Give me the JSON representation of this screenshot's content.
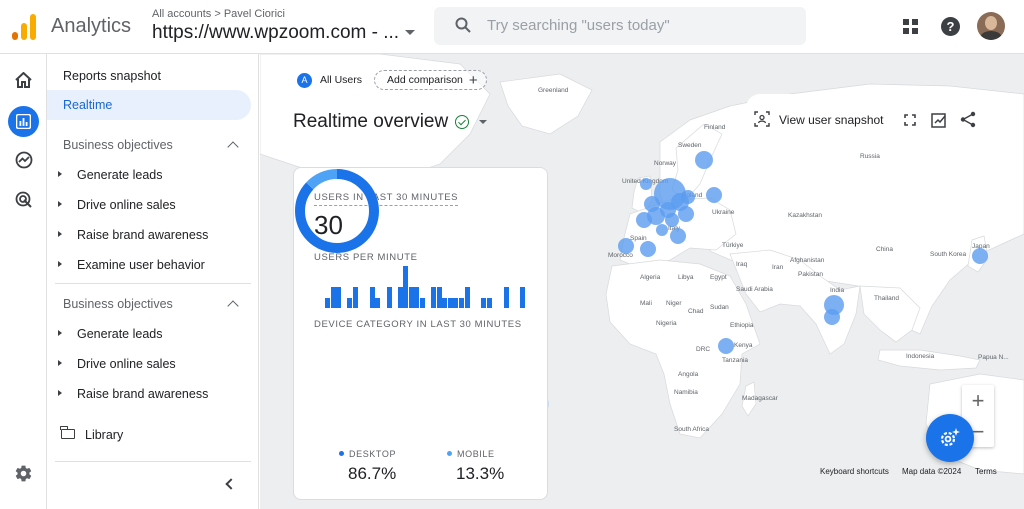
{
  "header": {
    "app_title": "Analytics",
    "breadcrumb": "All accounts > Pavel Ciorici",
    "account_name": "https://www.wpzoom.com - ...",
    "search_placeholder": "Try searching \"users today\""
  },
  "rail": {
    "items": [
      "home-icon",
      "reports-icon",
      "explore-icon",
      "advertising-icon",
      "settings-icon"
    ]
  },
  "nav": {
    "reports_snapshot": "Reports snapshot",
    "realtime": "Realtime",
    "section1": {
      "title": "Business objectives",
      "items": [
        "Generate leads",
        "Drive online sales",
        "Raise brand awareness",
        "Examine user behavior"
      ]
    },
    "section2": {
      "title": "Business objectives",
      "items": [
        "Generate leads",
        "Drive online sales",
        "Raise brand awareness"
      ]
    },
    "library": "Library"
  },
  "map": {
    "chip_all_users": "All Users",
    "chip_all_users_letter": "A",
    "add_comparison": "Add comparison",
    "title": "Realtime overview",
    "view_user_snapshot": "View user snapshot",
    "labels": {
      "greenland": "Greenland",
      "finland": "Finland",
      "sweden": "Sweden",
      "norway": "Norway",
      "united_kingdom": "United Kingdom",
      "poland": "Poland",
      "ukraine": "Ukraine",
      "russia": "Russia",
      "kazakhstan": "Kazakhstan",
      "spain": "Spain",
      "italy": "Italy",
      "turkiye": "Türkiye",
      "iraq": "Iraq",
      "iran": "Iran",
      "afghanistan": "Afghanistan",
      "pakistan": "Pakistan",
      "china": "China",
      "south_korea": "South Korea",
      "japan": "Japan",
      "morocco": "Morocco",
      "algeria": "Algeria",
      "libya": "Libya",
      "egypt": "Egypt",
      "saudi_arabia": "Saudi Arabia",
      "india": "India",
      "thailand": "Thailand",
      "mali": "Mali",
      "niger": "Niger",
      "chad": "Chad",
      "sudan": "Sudan",
      "nigeria": "Nigeria",
      "ethiopia": "Ethiopia",
      "drc": "DRC",
      "kenya": "Kenya",
      "tanzania": "Tanzania",
      "angola": "Angola",
      "namibia": "Namibia",
      "madagascar": "Madagascar",
      "south_africa": "South Africa",
      "indonesia": "Indonesia",
      "papua": "Papua N..."
    },
    "footer": {
      "keyboard_shortcuts": "Keyboard shortcuts",
      "map_data": "Map data ©2024",
      "terms": "Terms"
    },
    "zoom_in": "+",
    "zoom_out": "−"
  },
  "card": {
    "users_heading": "USERS IN LAST 30 MINUTES",
    "users_value": "30",
    "per_minute_heading": "USERS PER MINUTE",
    "device_heading": "DEVICE CATEGORY IN LAST 30 MINUTES",
    "legend": [
      {
        "label": "DESKTOP",
        "value": "86.7%",
        "color": "#1a73e8"
      },
      {
        "label": "MOBILE",
        "value": "13.3%",
        "color": "#4fa3f7"
      }
    ]
  },
  "chart_data": [
    {
      "type": "bar",
      "title": "USERS PER MINUTE",
      "values": [
        0,
        0,
        1,
        2,
        2,
        0,
        1,
        2,
        0,
        0,
        2,
        1,
        0,
        2,
        0,
        2,
        4,
        2,
        2,
        1,
        0,
        2,
        2,
        1,
        1,
        1,
        1,
        2,
        0,
        0,
        1,
        1,
        0,
        0,
        2,
        0,
        0,
        2
      ],
      "ylim": [
        0,
        4
      ]
    },
    {
      "type": "pie",
      "title": "DEVICE CATEGORY IN LAST 30 MINUTES",
      "categories": [
        "DESKTOP",
        "MOBILE"
      ],
      "values": [
        86.7,
        13.3
      ],
      "colors": [
        "#1a73e8",
        "#4fa3f7"
      ]
    }
  ],
  "colors": {
    "accent": "#1a73e8",
    "light_accent": "#e8f0fe",
    "bubble": "#5b9cf0"
  }
}
